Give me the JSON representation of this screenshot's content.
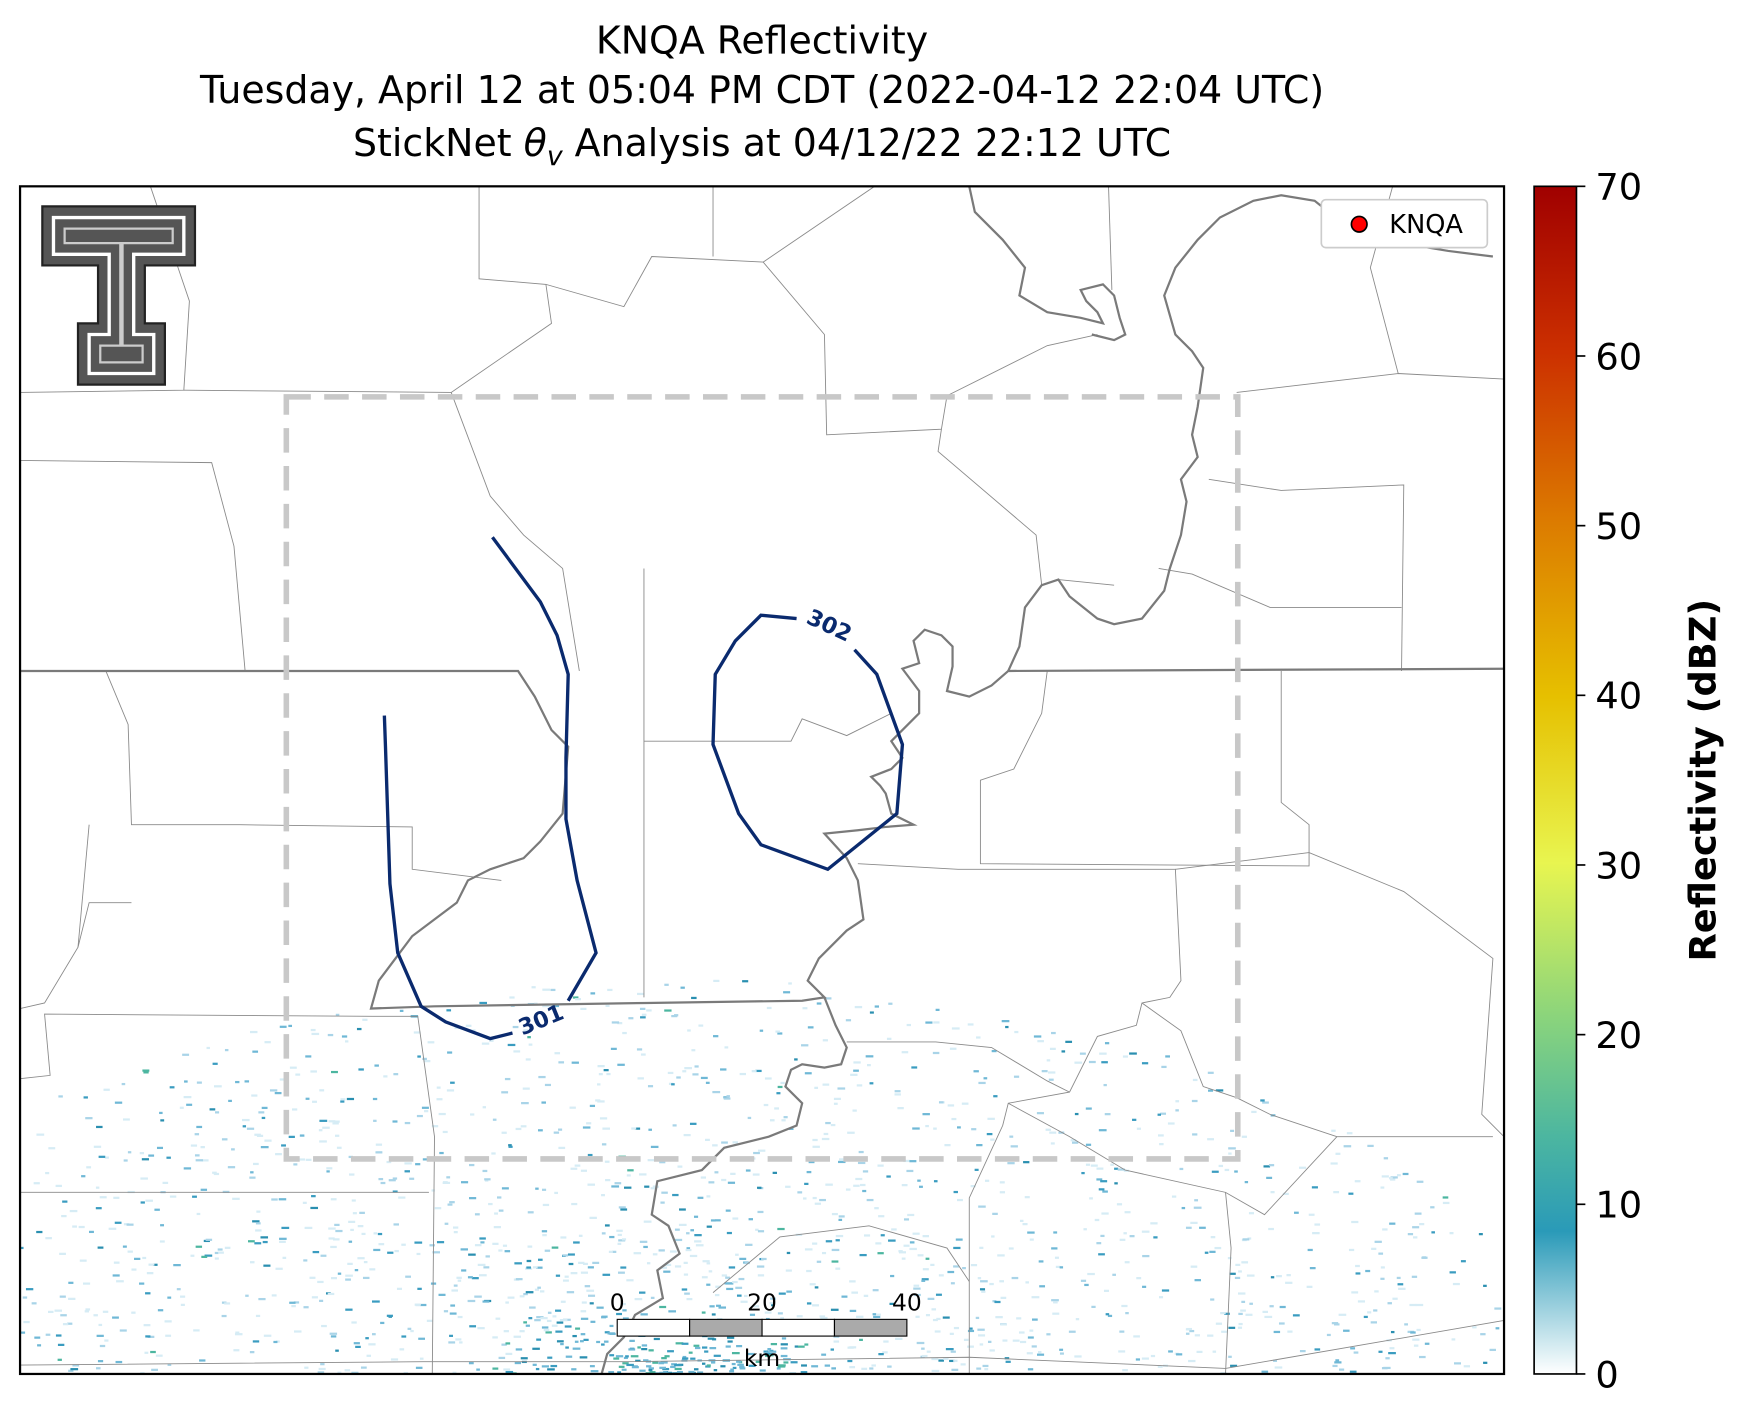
{
  "title": {
    "line1": "KNQA Reflectivity",
    "line2": "Tuesday, April 12 at 05:04 PM CDT (2022-04-12 22:04 UTC)",
    "line3": [
      "StickNet ",
      "θ",
      "v",
      " Analysis at 04/12/22 22:12 UTC"
    ]
  },
  "legend": {
    "label": "KNQA",
    "color": "#ff0000"
  },
  "colorbar": {
    "label": "Reflectivity (dBZ)",
    "lim": [
      0,
      70
    ],
    "ticks": [
      0,
      10,
      20,
      30,
      40,
      50,
      60,
      70
    ]
  },
  "contours": [
    {
      "label": "301"
    },
    {
      "label": "302"
    }
  ],
  "scalebar": {
    "ticks": [
      0,
      20,
      40
    ],
    "unit": "km"
  }
}
